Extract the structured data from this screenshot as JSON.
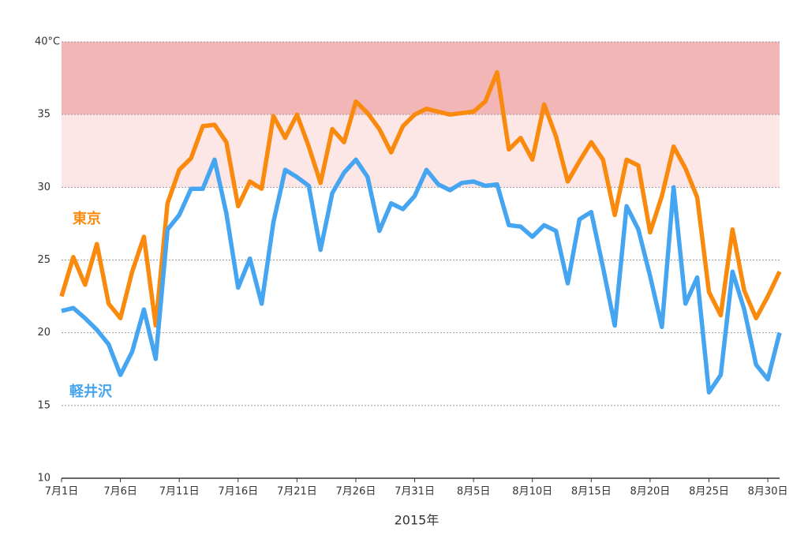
{
  "chart_data": {
    "type": "line",
    "x_label": "2015年",
    "categories": [
      "7月1日",
      null,
      null,
      null,
      null,
      "7月6日",
      null,
      null,
      null,
      null,
      "7月11日",
      null,
      null,
      null,
      null,
      "7月16日",
      null,
      null,
      null,
      null,
      "7月21日",
      null,
      null,
      null,
      null,
      "7月26日",
      null,
      null,
      null,
      null,
      "7月31日",
      null,
      null,
      null,
      null,
      "8月5日",
      null,
      null,
      null,
      null,
      "8月10日",
      null,
      null,
      null,
      null,
      "8月15日",
      null,
      null,
      null,
      null,
      "8月20日",
      null,
      null,
      null,
      null,
      "8月25日",
      null,
      null,
      null,
      null,
      "8月30日",
      null
    ],
    "series": [
      {
        "name": "東京",
        "color": "#f98a0e",
        "values": [
          22.5,
          25.2,
          23.3,
          26.1,
          22.0,
          21.0,
          24.2,
          26.6,
          20.5,
          28.9,
          31.2,
          32.0,
          34.2,
          34.3,
          33.1,
          28.7,
          30.4,
          29.9,
          34.9,
          33.4,
          35.0,
          32.8,
          30.3,
          34.0,
          33.1,
          35.9,
          35.1,
          34.0,
          32.4,
          34.2,
          35.0,
          35.4,
          35.2,
          35.0,
          35.1,
          35.2,
          35.9,
          37.9,
          32.6,
          33.4,
          31.9,
          35.7,
          33.5,
          30.4,
          31.8,
          33.1,
          31.9,
          28.1,
          31.9,
          31.5,
          26.9,
          29.4,
          32.8,
          31.3,
          29.3,
          22.8,
          21.2,
          27.1,
          22.9,
          21.0,
          22.5,
          24.2
        ]
      },
      {
        "name": "軽井沢",
        "color": "#45a5f0",
        "values": [
          21.5,
          21.7,
          21.0,
          20.2,
          19.2,
          17.1,
          18.7,
          21.6,
          18.2,
          27.1,
          28.1,
          29.9,
          29.9,
          31.9,
          28.2,
          23.1,
          25.1,
          22.0,
          27.6,
          31.2,
          30.7,
          30.1,
          25.7,
          29.6,
          31.0,
          31.9,
          30.7,
          27.0,
          28.9,
          28.5,
          29.4,
          31.2,
          30.2,
          29.8,
          30.3,
          30.4,
          30.1,
          30.2,
          27.4,
          27.3,
          26.6,
          27.4,
          27.0,
          23.4,
          27.8,
          28.3,
          24.5,
          20.5,
          28.7,
          27.1,
          23.9,
          20.4,
          30.0,
          22.0,
          23.8,
          15.9,
          17.1,
          24.2,
          21.6,
          17.8,
          16.8,
          20.0
        ]
      }
    ],
    "bands": [
      {
        "from": 35,
        "to": 40,
        "color": "#f2b6b6"
      },
      {
        "from": 30,
        "to": 35,
        "color": "#fce6e6"
      }
    ],
    "ylim": [
      10,
      40
    ],
    "yticks": [
      10,
      15,
      20,
      25,
      30,
      35,
      {
        "value": 40,
        "label": "40°C"
      }
    ],
    "grid": true
  }
}
